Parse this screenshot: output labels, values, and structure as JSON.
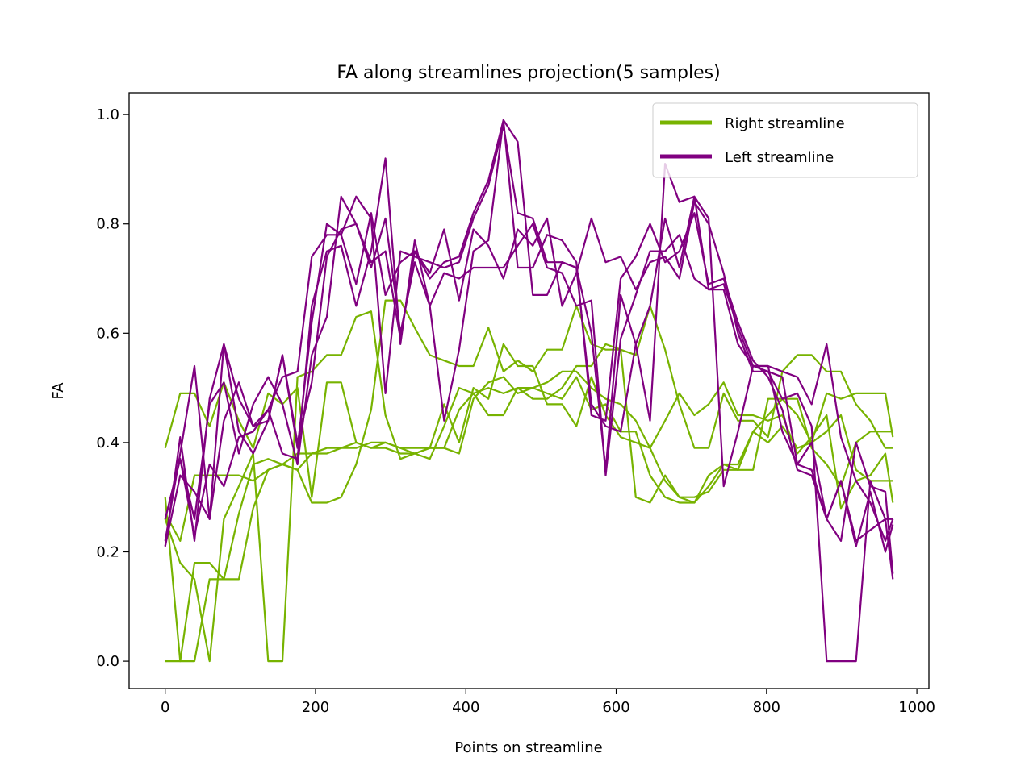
{
  "chart_data": {
    "type": "line",
    "title": "FA along streamlines projection(5 samples)",
    "xlabel": "Points on streamline",
    "ylabel": "FA",
    "xlim": [
      -48,
      1016
    ],
    "ylim": [
      -0.05,
      1.04
    ],
    "xticks": [
      0,
      200,
      400,
      600,
      800,
      1000
    ],
    "yticks": [
      0.0,
      0.2,
      0.4,
      0.6,
      0.8,
      1.0
    ],
    "xtick_labels": [
      "0",
      "200",
      "400",
      "600",
      "800",
      "1000"
    ],
    "ytick_labels": [
      "0.0",
      "0.2",
      "0.4",
      "0.6",
      "0.8",
      "1.0"
    ],
    "grid": false,
    "legend_position": "upper right",
    "legend": [
      {
        "label": "Right streamline",
        "color": "#77b300"
      },
      {
        "label": "Left streamline",
        "color": "#800080"
      }
    ],
    "x": [
      0,
      20,
      39,
      59,
      78,
      98,
      117,
      137,
      156,
      176,
      195,
      215,
      234,
      254,
      274,
      293,
      313,
      332,
      352,
      371,
      391,
      410,
      430,
      450,
      469,
      489,
      508,
      528,
      547,
      567,
      586,
      606,
      626,
      645,
      665,
      684,
      704,
      723,
      743,
      762,
      782,
      802,
      821,
      841,
      860,
      880,
      899,
      919,
      938,
      958,
      968
    ],
    "series": [
      {
        "group": "Right streamline",
        "color": "#77b300",
        "values": [
          0.39,
          0.49,
          0.49,
          0.43,
          0.51,
          0.44,
          0.39,
          0.49,
          0.47,
          0.5,
          0.3,
          0.51,
          0.51,
          0.4,
          0.39,
          0.4,
          0.39,
          0.38,
          0.37,
          0.43,
          0.5,
          0.49,
          0.5,
          0.49,
          0.5,
          0.5,
          0.49,
          0.48,
          0.52,
          0.46,
          0.47,
          0.42,
          0.42,
          0.34,
          0.3,
          0.29,
          0.29,
          0.34,
          0.36,
          0.35,
          0.42,
          0.4,
          0.43,
          0.39,
          0.4,
          0.49,
          0.48,
          0.49,
          0.49,
          0.49,
          0.41
        ]
      },
      {
        "group": "Right streamline",
        "color": "#77b300",
        "values": [
          0.27,
          0.22,
          0.34,
          0.34,
          0.34,
          0.34,
          0.33,
          0.35,
          0.36,
          0.38,
          0.38,
          0.39,
          0.39,
          0.4,
          0.39,
          0.39,
          0.38,
          0.38,
          0.39,
          0.39,
          0.46,
          0.49,
          0.45,
          0.45,
          0.5,
          0.48,
          0.48,
          0.5,
          0.54,
          0.54,
          0.58,
          0.57,
          0.3,
          0.29,
          0.34,
          0.3,
          0.29,
          0.32,
          0.36,
          0.36,
          0.42,
          0.45,
          0.48,
          0.45,
          0.4,
          0.42,
          0.45,
          0.35,
          0.33,
          0.33,
          0.33
        ]
      },
      {
        "group": "Right streamline",
        "color": "#77b300",
        "values": [
          0.0,
          0.0,
          0.0,
          0.15,
          0.15,
          0.27,
          0.36,
          0.37,
          0.36,
          0.35,
          0.29,
          0.29,
          0.3,
          0.36,
          0.46,
          0.66,
          0.66,
          0.61,
          0.56,
          0.55,
          0.54,
          0.54,
          0.61,
          0.53,
          0.55,
          0.53,
          0.57,
          0.57,
          0.65,
          0.58,
          0.57,
          0.57,
          0.56,
          0.65,
          0.57,
          0.47,
          0.39,
          0.39,
          0.49,
          0.44,
          0.44,
          0.41,
          0.53,
          0.56,
          0.56,
          0.53,
          0.53,
          0.47,
          0.44,
          0.39,
          0.39
        ]
      },
      {
        "group": "Right streamline",
        "color": "#77b300",
        "values": [
          0.3,
          0.0,
          0.18,
          0.18,
          0.15,
          0.15,
          0.28,
          0.35,
          0.36,
          0.35,
          0.38,
          0.38,
          0.39,
          0.39,
          0.4,
          0.4,
          0.39,
          0.39,
          0.39,
          0.39,
          0.38,
          0.48,
          0.51,
          0.52,
          0.49,
          0.5,
          0.51,
          0.53,
          0.53,
          0.5,
          0.48,
          0.47,
          0.44,
          0.39,
          0.33,
          0.3,
          0.3,
          0.31,
          0.35,
          0.35,
          0.35,
          0.48,
          0.48,
          0.48,
          0.39,
          0.36,
          0.32,
          0.4,
          0.42,
          0.42,
          0.42
        ]
      },
      {
        "group": "Right streamline",
        "color": "#77b300",
        "values": [
          0.26,
          0.18,
          0.15,
          0.0,
          0.26,
          0.32,
          0.38,
          0.0,
          0.0,
          0.52,
          0.53,
          0.56,
          0.56,
          0.63,
          0.64,
          0.45,
          0.37,
          0.38,
          0.39,
          0.47,
          0.4,
          0.5,
          0.48,
          0.58,
          0.54,
          0.54,
          0.47,
          0.47,
          0.43,
          0.52,
          0.45,
          0.41,
          0.4,
          0.39,
          0.44,
          0.49,
          0.45,
          0.47,
          0.51,
          0.45,
          0.45,
          0.44,
          0.45,
          0.38,
          0.41,
          0.45,
          0.28,
          0.33,
          0.34,
          0.38,
          0.29
        ]
      },
      {
        "group": "Left streamline",
        "color": "#800080",
        "values": [
          0.21,
          0.41,
          0.22,
          0.48,
          0.58,
          0.48,
          0.43,
          0.46,
          0.52,
          0.53,
          0.74,
          0.78,
          0.78,
          0.69,
          0.82,
          0.67,
          0.73,
          0.75,
          0.7,
          0.73,
          0.74,
          0.82,
          0.88,
          0.99,
          0.95,
          0.67,
          0.67,
          0.73,
          0.72,
          0.47,
          0.43,
          0.42,
          0.58,
          0.65,
          0.81,
          0.72,
          0.85,
          0.81,
          0.32,
          0.42,
          0.54,
          0.54,
          0.53,
          0.52,
          0.47,
          0.58,
          0.41,
          0.33,
          0.29,
          0.22,
          0.26
        ]
      },
      {
        "group": "Left streamline",
        "color": "#800080",
        "values": [
          0.26,
          0.37,
          0.23,
          0.36,
          0.32,
          0.41,
          0.42,
          0.46,
          0.38,
          0.37,
          0.65,
          0.75,
          0.76,
          0.65,
          0.75,
          0.92,
          0.58,
          0.77,
          0.65,
          0.44,
          0.57,
          0.75,
          0.77,
          0.99,
          0.72,
          0.72,
          0.78,
          0.77,
          0.73,
          0.45,
          0.44,
          0.7,
          0.74,
          0.8,
          0.73,
          0.75,
          0.82,
          0.69,
          0.7,
          0.62,
          0.55,
          0.52,
          0.46,
          0.35,
          0.34,
          0.26,
          0.22,
          0.4,
          0.32,
          0.31,
          0.16
        ]
      },
      {
        "group": "Left streamline",
        "color": "#800080",
        "values": [
          0.22,
          0.38,
          0.54,
          0.26,
          0.58,
          0.42,
          0.38,
          0.44,
          0.56,
          0.39,
          0.62,
          0.8,
          0.78,
          0.85,
          0.81,
          0.49,
          0.75,
          0.74,
          0.73,
          0.72,
          0.73,
          0.81,
          0.87,
          0.98,
          0.82,
          0.81,
          0.73,
          0.73,
          0.72,
          0.6,
          0.35,
          0.67,
          0.58,
          0.44,
          0.91,
          0.84,
          0.85,
          0.68,
          0.69,
          0.61,
          0.54,
          0.54,
          0.42,
          0.36,
          0.35,
          0.26,
          0.33,
          0.22,
          0.24,
          0.26,
          0.26
        ]
      },
      {
        "group": "Left streamline",
        "color": "#800080",
        "values": [
          0.26,
          0.37,
          0.26,
          0.47,
          0.51,
          0.38,
          0.47,
          0.52,
          0.47,
          0.36,
          0.56,
          0.63,
          0.85,
          0.8,
          0.73,
          0.75,
          0.59,
          0.75,
          0.71,
          0.79,
          0.66,
          0.79,
          0.76,
          0.7,
          0.79,
          0.76,
          0.81,
          0.65,
          0.71,
          0.81,
          0.73,
          0.74,
          0.68,
          0.73,
          0.74,
          0.7,
          0.84,
          0.8,
          0.71,
          0.6,
          0.53,
          0.53,
          0.52,
          0.36,
          0.4,
          0.26,
          0.33,
          0.21,
          0.31,
          0.2,
          0.25
        ]
      },
      {
        "group": "Left streamline",
        "color": "#800080",
        "values": [
          0.21,
          0.34,
          0.31,
          0.26,
          0.44,
          0.51,
          0.43,
          0.44,
          0.56,
          0.4,
          0.51,
          0.74,
          0.79,
          0.8,
          0.72,
          0.81,
          0.6,
          0.73,
          0.65,
          0.71,
          0.7,
          0.72,
          0.72,
          0.72,
          0.76,
          0.8,
          0.72,
          0.71,
          0.65,
          0.66,
          0.34,
          0.59,
          0.67,
          0.75,
          0.75,
          0.78,
          0.7,
          0.68,
          0.68,
          0.58,
          0.54,
          0.53,
          0.48,
          0.49,
          0.43,
          0.0,
          0.0,
          0.0,
          0.33,
          0.26,
          0.15
        ]
      }
    ]
  }
}
